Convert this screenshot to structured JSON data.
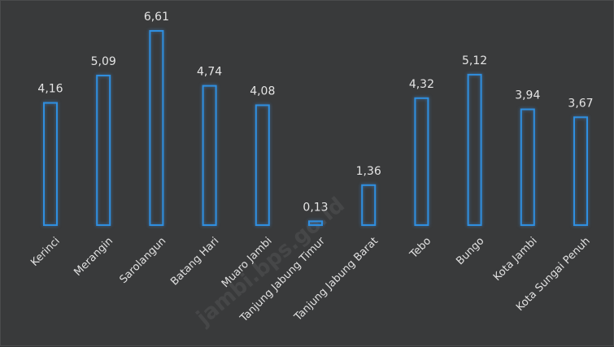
{
  "chart_data": {
    "type": "bar",
    "categories": [
      "Kerinci",
      "Merangin",
      "Sarolangun",
      "Batang Hari",
      "Muaro Jambi",
      "Tanjung Jabung Timur",
      "Tanjung Jabung Barat",
      "Tebo",
      "Bungo",
      "Kota Jambi",
      "Kota Sungai Penuh"
    ],
    "values": [
      4.16,
      5.09,
      6.61,
      4.74,
      4.08,
      0.13,
      1.36,
      4.32,
      5.12,
      3.94,
      3.67
    ],
    "value_labels": [
      "4,16",
      "5,09",
      "6,61",
      "4,74",
      "4,08",
      "0,13",
      "1,36",
      "4,32",
      "5,12",
      "3,94",
      "3,67"
    ],
    "title": "",
    "xlabel": "",
    "ylabel": "",
    "ylim": [
      0,
      6.61
    ],
    "grid": false,
    "colors": {
      "bar_outline": "#2f8fe0",
      "background": "#393a3b",
      "text": "#e4e4e4"
    }
  },
  "watermark": "jambi.bps.go.id"
}
